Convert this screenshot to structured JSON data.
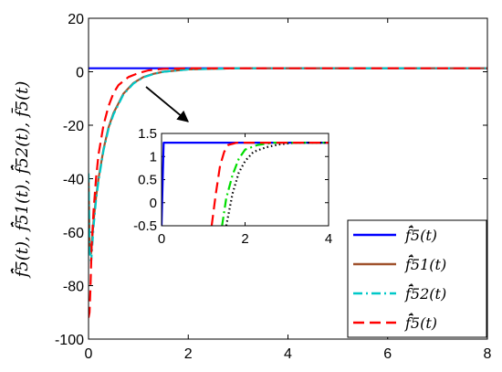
{
  "chart_data": {
    "type": "line",
    "title": "",
    "xlabel": "",
    "ylabel": "f̄̂5(t), f̄̂51(t), f̄̂52(t), f̄5(t)",
    "xlim": [
      0,
      8
    ],
    "ylim": [
      -100,
      20
    ],
    "xticks": [
      "0",
      "2",
      "4",
      "6",
      "8"
    ],
    "yticks": [
      "20",
      "0",
      "-20",
      "-40",
      "-60",
      "-80",
      "-100"
    ],
    "grid": false,
    "legend_position": "bottom-right",
    "series": [
      {
        "name": "f̄̂5(t)",
        "color": "#0000ff",
        "style": "solid",
        "x": [
          0,
          0.5,
          1,
          2,
          4,
          6,
          8
        ],
        "y": [
          1.3,
          1.3,
          1.3,
          1.3,
          1.3,
          1.3,
          1.3
        ]
      },
      {
        "name": "f̄̂51(t)",
        "color": "#a0522d",
        "style": "solid",
        "x": [
          0,
          0.02,
          0.05,
          0.1,
          0.15,
          0.2,
          0.3,
          0.4,
          0.5,
          0.7,
          0.9,
          1.1,
          1.3,
          1.5,
          2,
          3,
          4,
          8
        ],
        "y": [
          -40,
          -64,
          -68,
          -56,
          -47,
          -40,
          -29,
          -21,
          -15.5,
          -8.2,
          -4.2,
          -2,
          -0.8,
          0,
          0.9,
          1.3,
          1.3,
          1.3
        ]
      },
      {
        "name": "f̄̂52(t)",
        "color": "#00c8c8",
        "style": "dashdot",
        "x": [
          0,
          0.02,
          0.05,
          0.1,
          0.15,
          0.2,
          0.3,
          0.4,
          0.5,
          0.7,
          0.9,
          1.1,
          1.3,
          1.5,
          2,
          3,
          4,
          8
        ],
        "y": [
          -38,
          -66,
          -72,
          -58,
          -48,
          -41,
          -29.5,
          -21.5,
          -16,
          -8.5,
          -4.4,
          -2.1,
          -0.9,
          0,
          0.9,
          1.3,
          1.3,
          1.3
        ]
      },
      {
        "name": "f̄̂5(t)",
        "color": "#ff0000",
        "style": "dashed",
        "x": [
          0,
          0.02,
          0.04,
          0.06,
          0.1,
          0.15,
          0.2,
          0.3,
          0.4,
          0.5,
          0.6,
          0.8,
          1.0,
          1.2,
          1.5,
          2,
          4,
          8
        ],
        "y": [
          -92,
          -90,
          -80,
          -66,
          -52,
          -40,
          -31,
          -20,
          -13,
          -8,
          -5,
          -2,
          -0.5,
          0.5,
          1.1,
          1.3,
          1.3,
          1.3
        ]
      }
    ],
    "inset": {
      "xlim": [
        0,
        4
      ],
      "ylim": [
        -0.5,
        1.5
      ],
      "xticks": [
        "0",
        "2",
        "4"
      ],
      "yticks": [
        "1.5",
        "1",
        "0.5",
        "0",
        "-0.5"
      ],
      "series": [
        {
          "color": "#0000ff",
          "style": "solid",
          "x": [
            0,
            0.05,
            0.1,
            4
          ],
          "y": [
            -0.5,
            1.3,
            1.3,
            1.3
          ]
        },
        {
          "color": "#000000",
          "style": "dotted",
          "x": [
            1.55,
            1.7,
            1.85,
            2.0,
            2.2,
            2.5,
            2.8,
            3.2,
            4
          ],
          "y": [
            -0.5,
            0.2,
            0.65,
            0.9,
            1.1,
            1.2,
            1.26,
            1.3,
            1.3
          ]
        },
        {
          "color": "#00dd00",
          "style": "dashdot",
          "x": [
            1.45,
            1.55,
            1.7,
            1.85,
            2.0,
            2.3,
            2.7,
            3.2,
            4
          ],
          "y": [
            -0.5,
            0.1,
            0.6,
            0.95,
            1.15,
            1.25,
            1.3,
            1.3,
            1.3
          ]
        },
        {
          "color": "#ff0000",
          "style": "dashed",
          "x": [
            1.2,
            1.3,
            1.4,
            1.5,
            1.6,
            1.8,
            2.2,
            4
          ],
          "y": [
            -0.5,
            0.2,
            0.8,
            1.1,
            1.25,
            1.3,
            1.3,
            1.3
          ]
        }
      ]
    }
  }
}
